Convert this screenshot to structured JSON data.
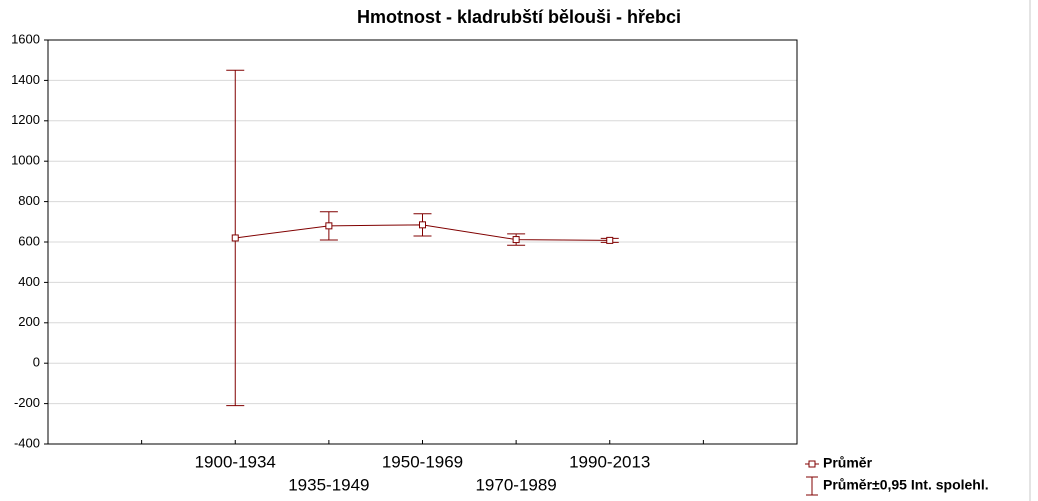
{
  "chart_data": {
    "type": "line",
    "title": "Hmotnost - kladrubští bělouši - hřebci",
    "categories": [
      "1900-1934",
      "1935-1949",
      "1950-1969",
      "1970-1989",
      "1990-2013"
    ],
    "series": [
      {
        "name": "Průměr",
        "color": "#800000",
        "values": [
          620,
          680,
          685,
          612,
          608
        ],
        "errors": [
          830,
          70,
          55,
          28,
          10
        ],
        "error_name": "Průměr±0,95 Int. spolehl."
      }
    ],
    "ylim": [
      -400,
      1600
    ],
    "yticks": [
      -400,
      -200,
      0,
      200,
      400,
      600,
      800,
      1000,
      1200,
      1400,
      1600
    ],
    "grid": true
  }
}
